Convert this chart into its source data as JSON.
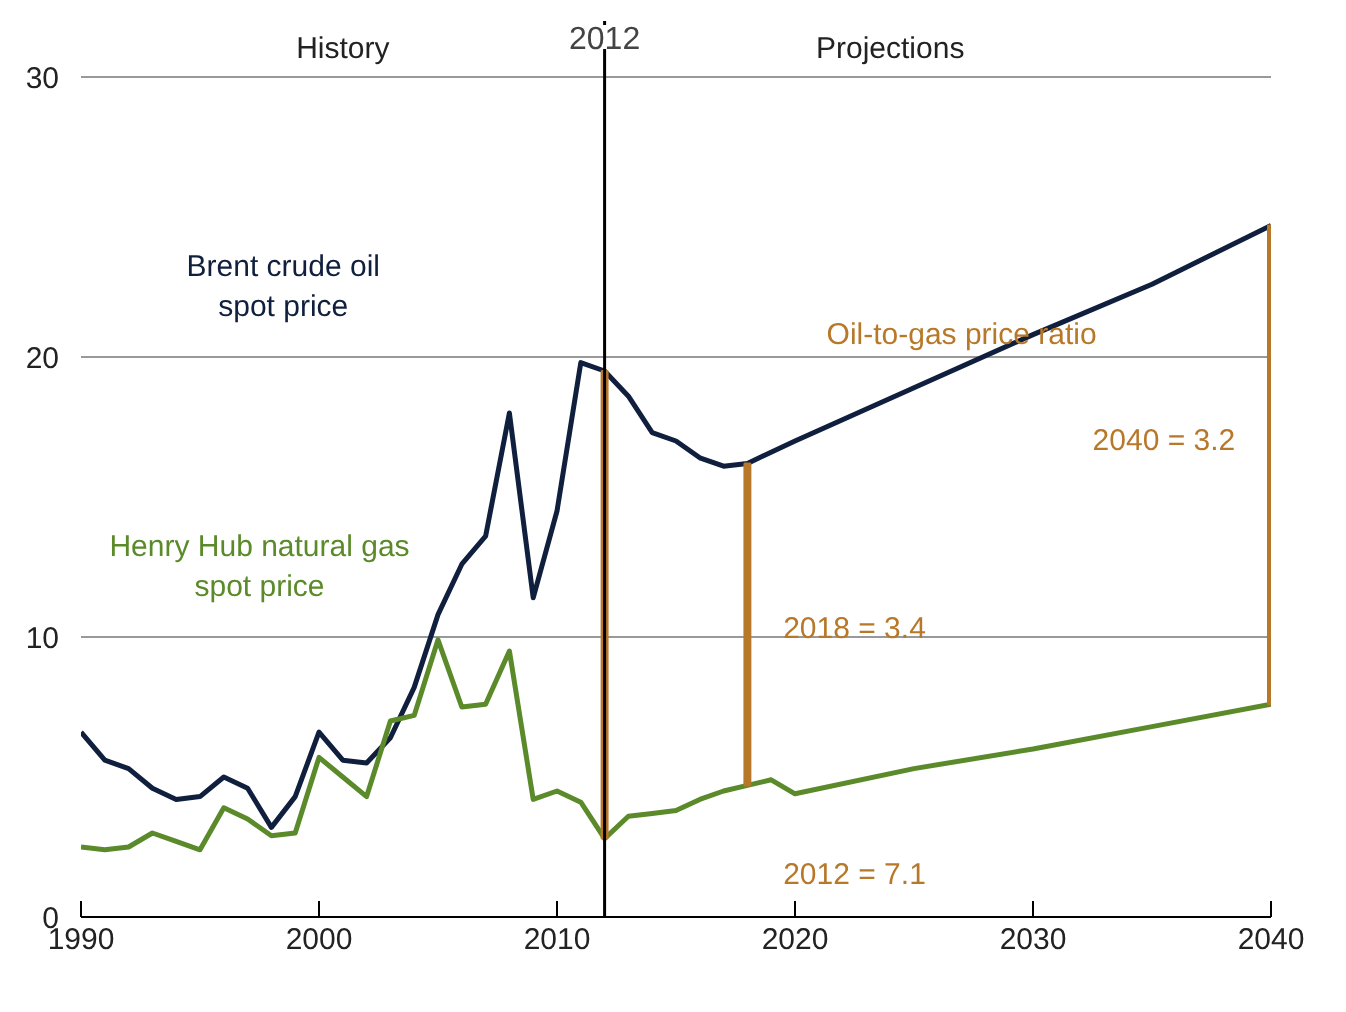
{
  "chart_data": {
    "type": "line",
    "xlim": [
      1990,
      2040
    ],
    "xticks": [
      1990,
      2000,
      2010,
      2020,
      2030,
      2040
    ],
    "ylim": [
      0,
      32
    ],
    "yticks": [
      0,
      10,
      20,
      30
    ],
    "grid": "y",
    "series": [
      {
        "name": "Brent crude oil\nspot price",
        "color": "#0f1f3d",
        "x": [
          1990,
          1991,
          1992,
          1993,
          1994,
          1995,
          1996,
          1997,
          1998,
          1999,
          2000,
          2001,
          2002,
          2003,
          2004,
          2005,
          2006,
          2007,
          2008,
          2009,
          2010,
          2011,
          2012,
          2013,
          2014,
          2015,
          2016,
          2017,
          2018,
          2020,
          2025,
          2030,
          2035,
          2040
        ],
        "values": [
          6.6,
          5.6,
          5.3,
          4.6,
          4.2,
          4.3,
          5.0,
          4.6,
          3.2,
          4.3,
          6.6,
          5.6,
          5.5,
          6.4,
          8.2,
          10.8,
          12.6,
          13.6,
          18.0,
          11.4,
          14.5,
          19.8,
          19.5,
          18.6,
          17.3,
          17.0,
          16.4,
          16.1,
          16.2,
          17.0,
          18.9,
          20.8,
          22.6,
          24.7
        ]
      },
      {
        "name": "Henry Hub natural gas\nspot price",
        "color": "#5b8a2a",
        "x": [
          1990,
          1991,
          1992,
          1993,
          1994,
          1995,
          1996,
          1997,
          1998,
          1999,
          2000,
          2001,
          2002,
          2003,
          2004,
          2005,
          2006,
          2007,
          2008,
          2009,
          2010,
          2011,
          2012,
          2013,
          2014,
          2015,
          2016,
          2017,
          2018,
          2019,
          2020,
          2025,
          2030,
          2035,
          2040
        ],
        "values": [
          2.5,
          2.4,
          2.5,
          3.0,
          2.7,
          2.4,
          3.9,
          3.5,
          2.9,
          3.0,
          5.7,
          5.0,
          4.3,
          7.0,
          7.2,
          9.9,
          7.5,
          7.6,
          9.5,
          4.2,
          4.5,
          4.1,
          2.8,
          3.6,
          3.7,
          3.8,
          4.2,
          4.5,
          4.7,
          4.9,
          4.4,
          5.3,
          6.0,
          6.8,
          7.6
        ]
      },
      {
        "type": "bar",
        "color": "#b8782a",
        "x": [
          2012,
          2018,
          2040
        ],
        "base": [
          2.8,
          4.7,
          7.6
        ],
        "values": [
          16.7,
          11.5,
          17.1
        ]
      }
    ],
    "ref_lines": [
      {
        "axis": "x",
        "value": 2012,
        "label": "2012",
        "color": "#000000"
      }
    ],
    "annotations": [
      "History",
      "Projections",
      "Oil-to-gas price ratio",
      "2040 = 3.2",
      "2018 = 3.4",
      "2012 = 7.1"
    ]
  }
}
